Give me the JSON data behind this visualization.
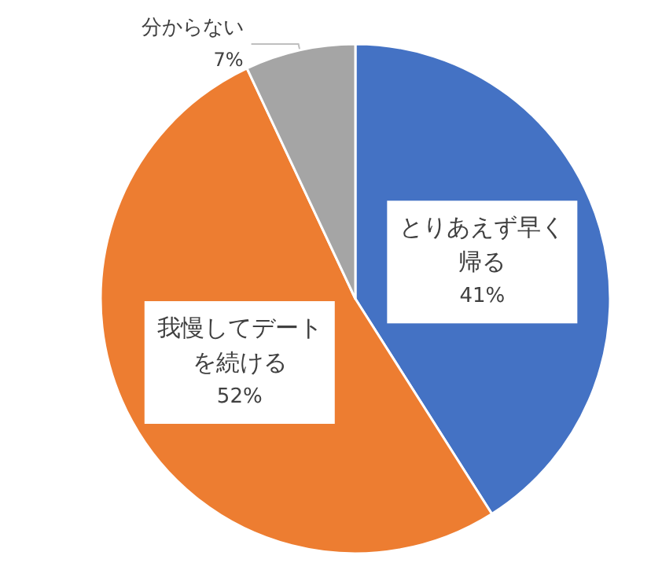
{
  "chart_data": {
    "type": "pie",
    "categories": [
      "とりあえず早く帰る",
      "我慢してデートを続ける",
      "分からない"
    ],
    "values": [
      41,
      52,
      7
    ],
    "colors": [
      "#4472c4",
      "#ed7d31",
      "#a5a5a5"
    ],
    "value_labels": [
      "41%",
      "52%",
      "7%"
    ]
  }
}
